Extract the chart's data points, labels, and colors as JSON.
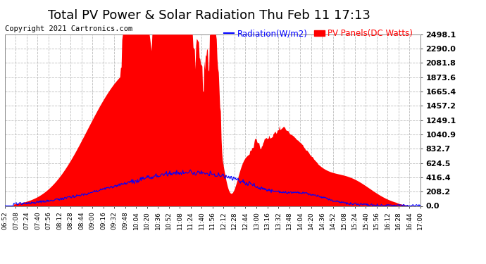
{
  "title": "Total PV Power & Solar Radiation Thu Feb 11 17:13",
  "copyright": "Copyright 2021 Cartronics.com",
  "legend_radiation": "Radiation(W/m2)",
  "legend_pv": "PV Panels(DC Watts)",
  "yticks": [
    0.0,
    208.2,
    416.4,
    624.5,
    832.7,
    1040.9,
    1249.1,
    1457.2,
    1665.4,
    1873.6,
    2081.8,
    2290.0,
    2498.1
  ],
  "ymax": 2498.1,
  "ymin": 0.0,
  "radiation_color": "blue",
  "pv_color": "red",
  "background_color": "#ffffff",
  "grid_color": "#bbbbbb",
  "title_fontsize": 13,
  "copyright_fontsize": 7.5,
  "legend_fontsize": 8.5,
  "ytick_fontsize": 8,
  "xtick_fontsize": 6.5,
  "xtick_labels": [
    "06:52",
    "07:08",
    "07:24",
    "07:40",
    "07:56",
    "08:12",
    "08:28",
    "08:44",
    "09:00",
    "09:16",
    "09:32",
    "09:48",
    "10:04",
    "10:20",
    "10:36",
    "10:52",
    "11:08",
    "11:24",
    "11:40",
    "11:56",
    "12:12",
    "12:28",
    "12:44",
    "13:00",
    "13:16",
    "13:32",
    "13:48",
    "14:04",
    "14:20",
    "14:36",
    "14:52",
    "15:08",
    "15:24",
    "15:40",
    "15:56",
    "16:12",
    "16:28",
    "16:44",
    "17:00"
  ]
}
